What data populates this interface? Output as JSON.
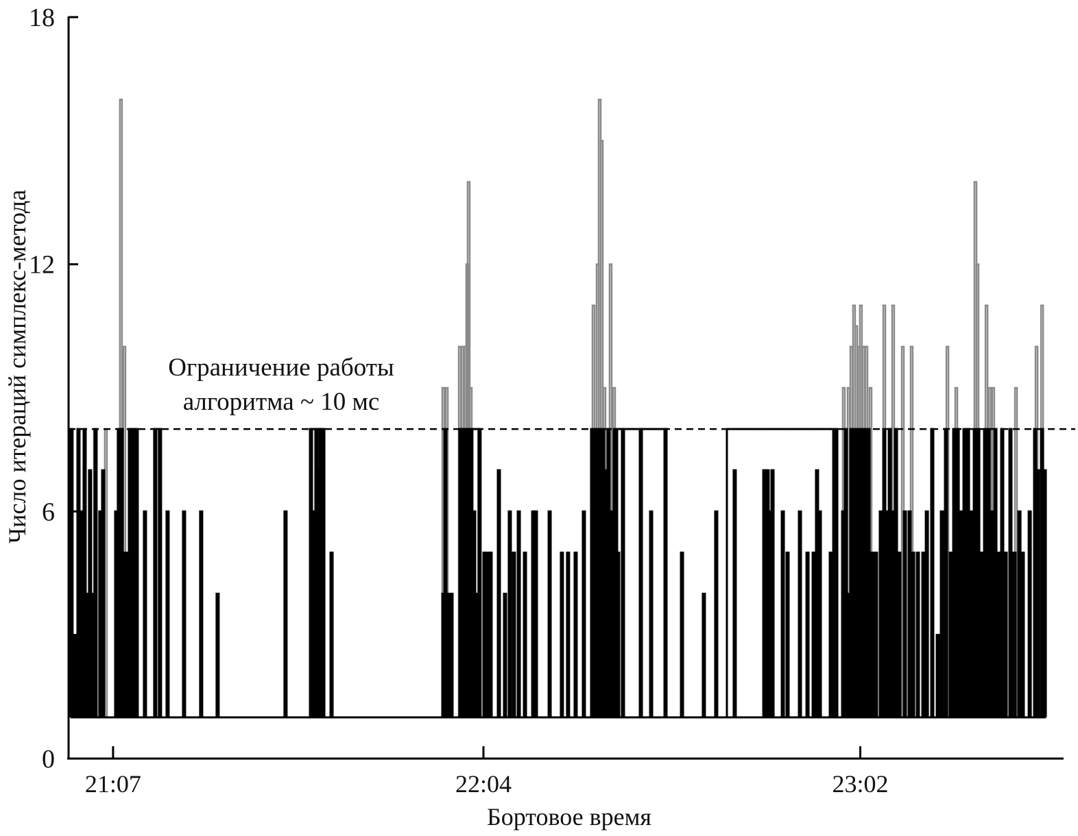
{
  "chart_data": {
    "type": "line",
    "title": "",
    "xlabel": "Бортовое время",
    "ylabel": "Число итераций симплекс-метода",
    "xlim": [
      "21:00:09",
      "23:33:11"
    ],
    "ylim": [
      0,
      18
    ],
    "x_ticks": [
      "21:07",
      "22:04",
      "23:02"
    ],
    "x_tick_times": [
      "21:07:00",
      "22:04:00",
      "23:02:00"
    ],
    "y_ticks": [
      "0",
      "6",
      "12",
      "18"
    ],
    "y_tick_values": [
      0,
      6,
      12,
      18
    ],
    "grid": false,
    "baseline_value": 1,
    "limit_line": {
      "value": 8,
      "style": "dashed",
      "label_lines": [
        "Ограничение работы",
        "алгоритма ~ 10 мс"
      ]
    },
    "colors": {
      "bounded": "#000000",
      "unbounded": "#8a8a8a"
    },
    "series": [
      {
        "key": "unbounded",
        "points": [
          [
            "21:04:03",
            8
          ],
          [
            "21:05:44",
            8
          ],
          [
            "21:08:03",
            16
          ],
          [
            "21:08:35",
            10
          ],
          [
            "21:57:40",
            9
          ],
          [
            "21:58:12",
            9
          ],
          [
            "22:00:12",
            10
          ],
          [
            "22:00:37",
            10
          ],
          [
            "22:01:03",
            10
          ],
          [
            "22:01:21",
            12
          ],
          [
            "22:01:34",
            14
          ],
          [
            "22:01:53",
            9
          ],
          [
            "22:20:47",
            11
          ],
          [
            "22:21:25",
            12
          ],
          [
            "22:21:44",
            16
          ],
          [
            "22:22:03",
            15
          ],
          [
            "22:22:28",
            9
          ],
          [
            "22:23:25",
            12
          ],
          [
            "22:23:57",
            9
          ],
          [
            "22:59:18",
            9
          ],
          [
            "23:00:03",
            9
          ],
          [
            "23:00:28",
            10
          ],
          [
            "23:00:53",
            11
          ],
          [
            "23:01:13",
            10.5
          ],
          [
            "23:01:38",
            10
          ],
          [
            "23:01:56",
            11
          ],
          [
            "23:02:22",
            10
          ],
          [
            "23:02:47",
            10
          ],
          [
            "23:03:25",
            9
          ],
          [
            "23:05:32",
            11
          ],
          [
            "23:06:54",
            11
          ],
          [
            "23:08:23",
            10
          ],
          [
            "23:09:45",
            10
          ],
          [
            "23:15:15",
            10
          ],
          [
            "23:16:37",
            9
          ],
          [
            "23:19:34",
            14
          ],
          [
            "23:19:53",
            12
          ],
          [
            "23:21:16",
            11
          ],
          [
            "23:21:47",
            9
          ],
          [
            "23:22:18",
            9
          ],
          [
            "23:25:48",
            9
          ],
          [
            "23:28:58",
            10
          ],
          [
            "23:29:49",
            11
          ]
        ]
      },
      {
        "key": "bounded",
        "plateaus": [
          [
            "21:13:20",
            "21:14:04",
            8
          ],
          [
            "21:37:18",
            "21:39:12",
            8
          ],
          [
            "22:00:18",
            "22:03:15",
            8
          ],
          [
            "22:24:35",
            "22:28:04",
            8
          ],
          [
            "22:28:23",
            "22:31:58",
            8
          ],
          [
            "22:41:28",
            "22:57:50",
            8
          ]
        ],
        "points": [
          [
            "21:00:27",
            8
          ],
          [
            "21:00:59",
            3
          ],
          [
            "21:01:31",
            8
          ],
          [
            "21:02:02",
            6
          ],
          [
            "21:02:28",
            8
          ],
          [
            "21:02:53",
            4
          ],
          [
            "21:03:18",
            7
          ],
          [
            "21:03:44",
            4
          ],
          [
            "21:04:09",
            8
          ],
          [
            "21:04:53",
            6
          ],
          [
            "21:05:19",
            7
          ],
          [
            "21:07:19",
            6
          ],
          [
            "21:07:44",
            8
          ],
          [
            "21:08:10",
            8
          ],
          [
            "21:08:22",
            5
          ],
          [
            "21:08:48",
            5
          ],
          [
            "21:09:13",
            5
          ],
          [
            "21:09:26",
            8
          ],
          [
            "21:09:51",
            8
          ],
          [
            "21:10:10",
            8
          ],
          [
            "21:10:29",
            8
          ],
          [
            "21:11:45",
            6
          ],
          [
            "21:13:20",
            8
          ],
          [
            "21:14:04",
            8
          ],
          [
            "21:15:14",
            6
          ],
          [
            "21:17:46",
            6
          ],
          [
            "21:20:24",
            6
          ],
          [
            "21:22:56",
            4
          ],
          [
            "21:33:23",
            6
          ],
          [
            "21:37:18",
            8
          ],
          [
            "21:37:43",
            6
          ],
          [
            "21:38:08",
            8
          ],
          [
            "21:38:27",
            7
          ],
          [
            "21:38:46",
            8
          ],
          [
            "21:39:12",
            8
          ],
          [
            "21:40:28",
            5
          ],
          [
            "21:57:40",
            4
          ],
          [
            "21:57:59",
            8
          ],
          [
            "21:58:24",
            4
          ],
          [
            "21:58:56",
            4
          ],
          [
            "22:00:18",
            8
          ],
          [
            "22:00:43",
            8
          ],
          [
            "22:01:09",
            8
          ],
          [
            "22:01:34",
            8
          ],
          [
            "22:01:59",
            8
          ],
          [
            "22:02:25",
            6
          ],
          [
            "22:02:50",
            4
          ],
          [
            "22:03:15",
            8
          ],
          [
            "22:04:00",
            5
          ],
          [
            "22:04:32",
            5
          ],
          [
            "22:04:57",
            5
          ],
          [
            "22:06:13",
            7
          ],
          [
            "22:07:10",
            4
          ],
          [
            "22:07:54",
            6
          ],
          [
            "22:08:32",
            5
          ],
          [
            "22:09:17",
            6
          ],
          [
            "22:10:14",
            5
          ],
          [
            "22:11:30",
            6
          ],
          [
            "22:11:55",
            6
          ],
          [
            "22:14:02",
            6
          ],
          [
            "22:15:55",
            5
          ],
          [
            "22:16:52",
            5
          ],
          [
            "22:18:02",
            5
          ],
          [
            "22:19:18",
            6
          ],
          [
            "22:20:34",
            8
          ],
          [
            "22:20:59",
            8
          ],
          [
            "22:21:25",
            8
          ],
          [
            "22:21:50",
            8
          ],
          [
            "22:22:15",
            8
          ],
          [
            "22:22:41",
            7
          ],
          [
            "22:23:06",
            8
          ],
          [
            "22:23:31",
            6
          ],
          [
            "22:24:03",
            8
          ],
          [
            "22:24:35",
            5
          ],
          [
            "22:25:19",
            8
          ],
          [
            "22:28:04",
            8
          ],
          [
            "22:29:39",
            6
          ],
          [
            "22:31:52",
            8
          ],
          [
            "22:34:24",
            5
          ],
          [
            "22:37:46",
            4
          ],
          [
            "22:39:40",
            6
          ],
          [
            "22:42:31",
            7
          ],
          [
            "22:47:04",
            7
          ],
          [
            "22:47:35",
            7
          ],
          [
            "22:48:01",
            6
          ],
          [
            "22:48:20",
            7
          ],
          [
            "22:49:55",
            6
          ],
          [
            "22:50:39",
            5
          ],
          [
            "22:52:33",
            6
          ],
          [
            "22:53:43",
            5
          ],
          [
            "22:54:40",
            5
          ],
          [
            "22:55:11",
            7
          ],
          [
            "22:55:37",
            6
          ],
          [
            "22:57:18",
            5
          ],
          [
            "22:58:09",
            8
          ],
          [
            "22:59:12",
            6
          ],
          [
            "22:59:37",
            8
          ],
          [
            "23:00:03",
            4
          ],
          [
            "23:00:28",
            8
          ],
          [
            "23:00:53",
            8
          ],
          [
            "23:01:19",
            8
          ],
          [
            "23:01:44",
            8
          ],
          [
            "23:02:09",
            8
          ],
          [
            "23:02:35",
            8
          ],
          [
            "23:03:07",
            8
          ],
          [
            "23:03:38",
            5
          ],
          [
            "23:04:16",
            5
          ],
          [
            "23:05:00",
            6
          ],
          [
            "23:05:32",
            8
          ],
          [
            "23:05:57",
            6
          ],
          [
            "23:06:23",
            8
          ],
          [
            "23:06:48",
            6
          ],
          [
            "23:07:20",
            8
          ],
          [
            "23:07:51",
            5
          ],
          [
            "23:08:42",
            6
          ],
          [
            "23:09:26",
            6
          ],
          [
            "23:09:58",
            5
          ],
          [
            "23:10:42",
            5
          ],
          [
            "23:11:33",
            5
          ],
          [
            "23:12:05",
            6
          ],
          [
            "23:12:55",
            8
          ],
          [
            "23:13:46",
            3
          ],
          [
            "23:14:24",
            6
          ],
          [
            "23:15:02",
            8
          ],
          [
            "23:15:46",
            5
          ],
          [
            "23:16:18",
            8
          ],
          [
            "23:16:50",
            8
          ],
          [
            "23:17:21",
            6
          ],
          [
            "23:17:53",
            8
          ],
          [
            "23:18:25",
            8
          ],
          [
            "23:18:56",
            6
          ],
          [
            "23:19:28",
            8
          ],
          [
            "23:20:00",
            8
          ],
          [
            "23:20:31",
            5
          ],
          [
            "23:21:03",
            8
          ],
          [
            "23:21:35",
            8
          ],
          [
            "23:22:06",
            6
          ],
          [
            "23:22:38",
            8
          ],
          [
            "23:23:10",
            5
          ],
          [
            "23:23:41",
            8
          ],
          [
            "23:24:13",
            5
          ],
          [
            "23:24:57",
            8
          ],
          [
            "23:25:35",
            5
          ],
          [
            "23:26:20",
            6
          ],
          [
            "23:26:51",
            5
          ],
          [
            "23:27:55",
            6
          ],
          [
            "23:28:45",
            8
          ],
          [
            "23:29:11",
            7
          ],
          [
            "23:29:49",
            8
          ],
          [
            "23:30:14",
            7
          ]
        ]
      }
    ]
  }
}
